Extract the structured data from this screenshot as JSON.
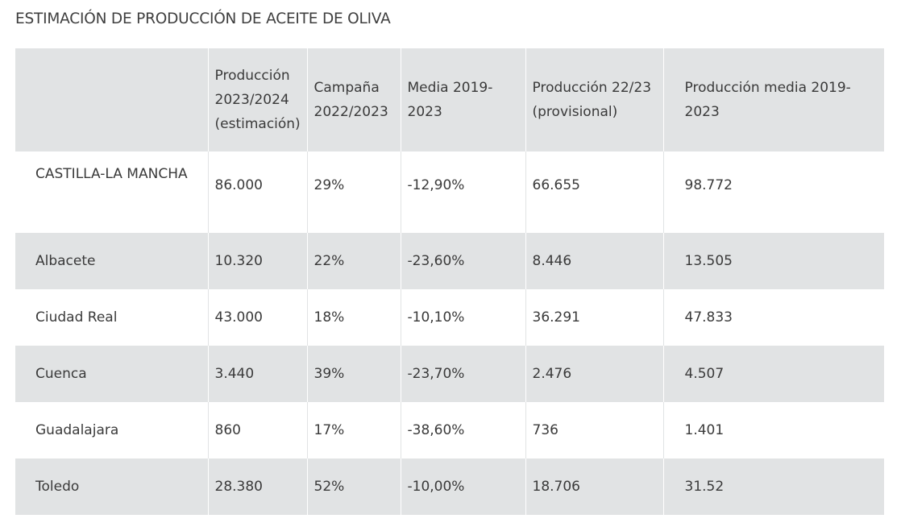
{
  "title": "ESTIMACIÓN DE PRODUCCIÓN DE ACEITE DE OLIVA",
  "columns": [
    "",
    "Producción 2023/2024 (estimación)",
    "Campaña 2022/2023",
    "Media 2019-2023",
    "Producción 22/23 (provisional)",
    "Producción media 2019-2023"
  ],
  "rows": [
    [
      "CASTILLA-LA MANCHA",
      "86.000",
      "29%",
      "-12,90%",
      "66.655",
      "98.772"
    ],
    [
      "Albacete",
      "10.320",
      "22%",
      "-23,60%",
      "8.446",
      "13.505"
    ],
    [
      "Ciudad Real",
      "43.000",
      "18%",
      "-10,10%",
      "36.291",
      "47.833"
    ],
    [
      "Cuenca",
      "3.440",
      "39%",
      "-23,70%",
      "2.476",
      "4.507"
    ],
    [
      "Guadalajara",
      "860",
      "17%",
      "-38,60%",
      "736",
      "1.401"
    ],
    [
      "Toledo",
      "28.380",
      "52%",
      "-10,00%",
      "18.706",
      "31.52"
    ]
  ],
  "colors": {
    "shaded_row": "#e1e3e4",
    "text": "#3a3a3a",
    "background": "#ffffff"
  }
}
